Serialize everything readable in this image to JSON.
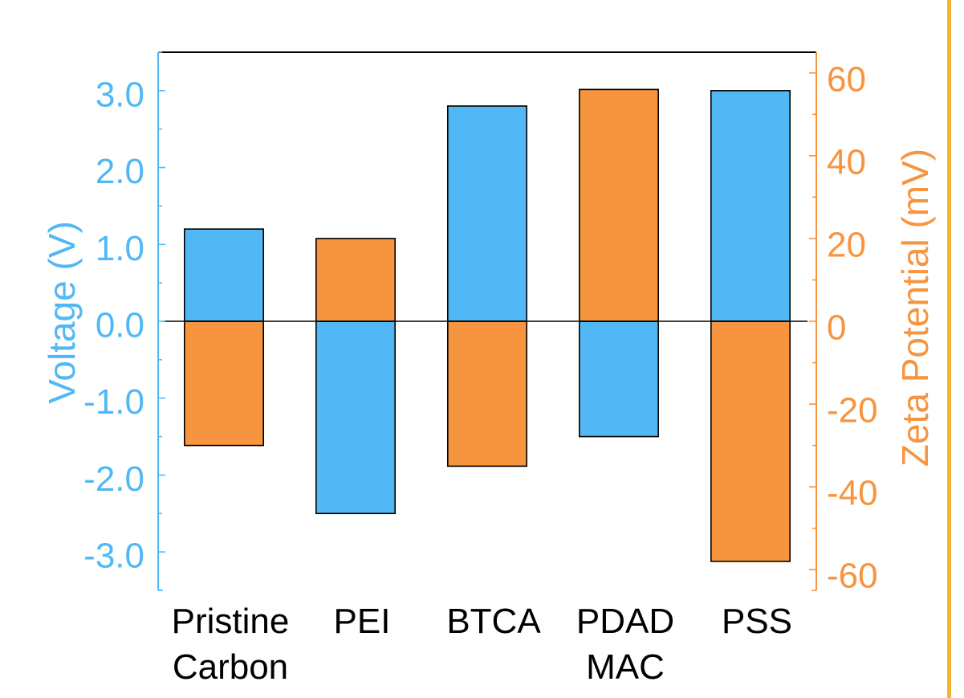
{
  "colors": {
    "border_stripe": "#f5b431"
  },
  "chart_data": {
    "type": "bar",
    "categories": [
      "Pristine Carbon",
      "PEI",
      "BTCA",
      "PDAD MAC",
      "PSS"
    ],
    "ylabel": "Voltage (V)",
    "ylim": [
      -3.5,
      3.5
    ],
    "yticks": [
      3,
      2,
      1,
      0,
      -1,
      -2,
      -3
    ],
    "ytick_labels": [
      "3.0",
      "2.0",
      "1.0",
      "0.0",
      "-1.0",
      "-2.0",
      "-3.0"
    ],
    "y2label": "Zeta Potential (mV)",
    "y2lim": [
      -65,
      65
    ],
    "y2ticks": [
      60,
      40,
      20,
      0,
      -20,
      -40,
      -60
    ],
    "y2tick_labels": [
      "60",
      "40",
      "20",
      "0",
      "-20",
      "-40",
      "-60"
    ],
    "series": [
      {
        "y_axis": 1,
        "color": "#52b8f5",
        "values": [
          1.2,
          -2.5,
          2.8,
          -1.5,
          3.0
        ]
      },
      {
        "y_axis": 2,
        "color": "#f7943f",
        "values": [
          -30,
          20,
          -35,
          56,
          -58
        ]
      }
    ],
    "grid": false
  }
}
